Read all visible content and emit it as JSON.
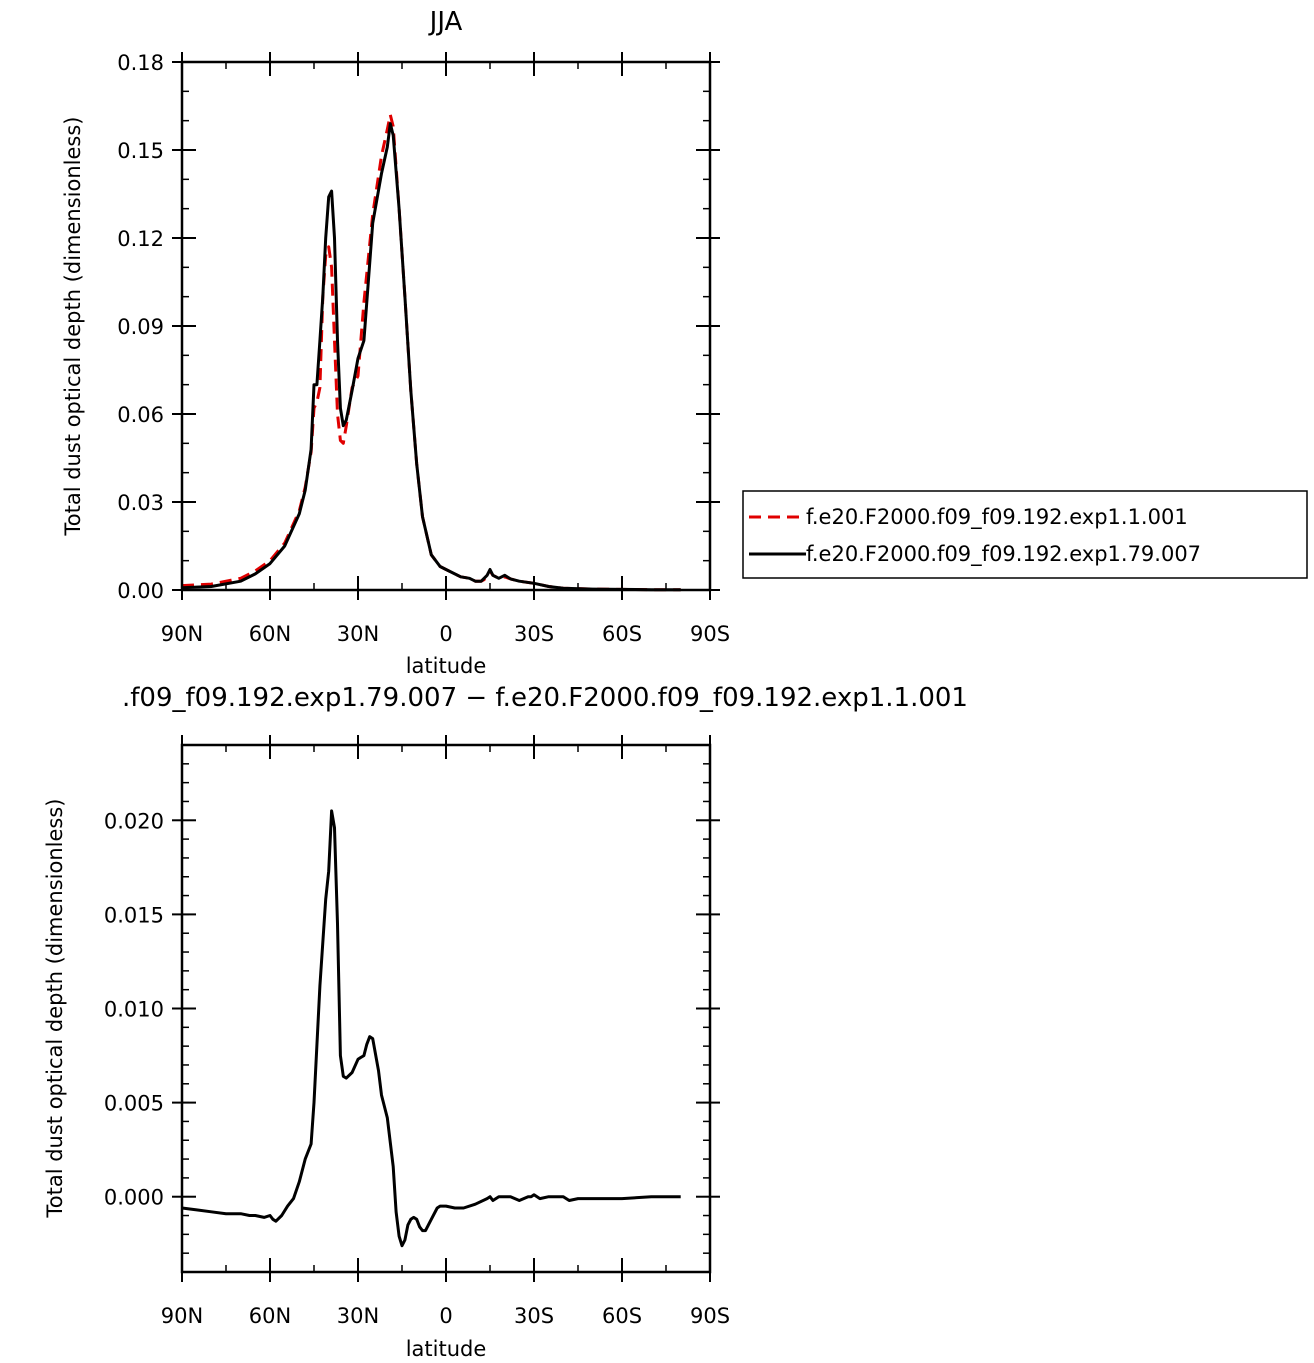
{
  "chart_data": [
    {
      "type": "line",
      "title": "JJA",
      "xlabel": "latitude",
      "ylabel": "Total dust optical depth (dimensionless)",
      "xlim": [
        90,
        -90
      ],
      "ylim": [
        0,
        0.18
      ],
      "x_ticks": [
        90,
        60,
        30,
        0,
        -30,
        -60,
        -90
      ],
      "x_tick_labels": [
        "90N",
        "60N",
        "30N",
        "0",
        "30S",
        "60S",
        "90S"
      ],
      "y_ticks": [
        0,
        0.03,
        0.06,
        0.09,
        0.12,
        0.15,
        0.18
      ],
      "y_tick_labels": [
        "0.00",
        "0.03",
        "0.06",
        "0.09",
        "0.12",
        "0.15",
        "0.18"
      ],
      "legend": "right",
      "series": [
        {
          "name": "f.e20.F2000.f09_f09.192.exp1.1.001",
          "color": "#e00000",
          "dash": "dashed",
          "x": [
            90,
            80,
            70,
            65,
            60,
            55,
            50,
            48,
            46,
            45,
            44,
            43,
            42,
            41,
            40,
            39,
            38,
            37,
            36,
            35,
            34,
            32,
            30,
            28,
            25,
            22,
            20,
            19,
            18,
            16,
            14,
            12,
            10,
            8,
            5,
            2,
            0,
            -3,
            -5,
            -8,
            -10,
            -12,
            -13,
            -14,
            -15,
            -16,
            -18,
            -20,
            -22,
            -25,
            -30,
            -35,
            -40,
            -50,
            -60,
            -70,
            -80
          ],
          "values": [
            0.0015,
            0.002,
            0.004,
            0.0065,
            0.01,
            0.016,
            0.027,
            0.035,
            0.047,
            0.062,
            0.064,
            0.069,
            0.1,
            0.114,
            0.117,
            0.11,
            0.085,
            0.06,
            0.051,
            0.05,
            0.056,
            0.069,
            0.073,
            0.098,
            0.128,
            0.148,
            0.157,
            0.162,
            0.158,
            0.13,
            0.1,
            0.068,
            0.043,
            0.025,
            0.012,
            0.008,
            0.007,
            0.0055,
            0.0045,
            0.004,
            0.003,
            0.003,
            0.0035,
            0.005,
            0.0065,
            0.005,
            0.004,
            0.0045,
            0.0038,
            0.003,
            0.0023,
            0.0012,
            0.0006,
            0.0003,
            0.0002,
            0.0001,
            0.0001
          ]
        },
        {
          "name": "f.e20.F2000.f09_f09.192.exp1.79.007",
          "color": "#000000",
          "dash": "solid",
          "x": [
            90,
            80,
            70,
            65,
            60,
            55,
            50,
            48,
            46,
            45,
            44,
            43,
            42,
            41,
            40,
            39,
            38,
            37,
            36,
            35,
            34,
            32,
            30,
            28,
            25,
            22,
            20,
            19,
            18,
            16,
            14,
            12,
            10,
            8,
            5,
            2,
            0,
            -3,
            -5,
            -8,
            -10,
            -12,
            -13,
            -14,
            -15,
            -16,
            -18,
            -20,
            -22,
            -25,
            -30,
            -35,
            -40,
            -50,
            -60,
            -70,
            -80
          ],
          "values": [
            0.0008,
            0.0012,
            0.003,
            0.0055,
            0.009,
            0.015,
            0.026,
            0.034,
            0.048,
            0.07,
            0.07,
            0.085,
            0.1,
            0.12,
            0.134,
            0.136,
            0.12,
            0.085,
            0.062,
            0.056,
            0.058,
            0.068,
            0.079,
            0.085,
            0.125,
            0.142,
            0.151,
            0.159,
            0.155,
            0.13,
            0.1,
            0.068,
            0.043,
            0.025,
            0.012,
            0.008,
            0.007,
            0.0055,
            0.0045,
            0.004,
            0.003,
            0.003,
            0.004,
            0.005,
            0.007,
            0.005,
            0.004,
            0.005,
            0.0038,
            0.003,
            0.0023,
            0.0012,
            0.0006,
            0.0003,
            0.0002,
            0.0001,
            0.0001
          ]
        }
      ]
    },
    {
      "type": "line",
      "title": ".f09_f09.192.exp1.79.007 − f.e20.F2000.f09_f09.192.exp1.1.001",
      "xlabel": "latitude",
      "ylabel": "Total dust optical depth (dimensionless)",
      "xlim": [
        90,
        -90
      ],
      "ylim": [
        -0.004,
        0.024
      ],
      "x_ticks": [
        90,
        60,
        30,
        0,
        -30,
        -60,
        -90
      ],
      "x_tick_labels": [
        "90N",
        "60N",
        "30N",
        "0",
        "30S",
        "60S",
        "90S"
      ],
      "y_ticks": [
        0,
        0.005,
        0.01,
        0.015,
        0.02
      ],
      "y_tick_labels": [
        "0.000",
        "0.005",
        "0.010",
        "0.015",
        "0.020"
      ],
      "series": [
        {
          "color": "#000000",
          "dash": "solid",
          "x": [
            90,
            85,
            80,
            75,
            70,
            67,
            65,
            62,
            60,
            59,
            58,
            56,
            54,
            52,
            50,
            48,
            46,
            45,
            43,
            41,
            40,
            39,
            38,
            37,
            36,
            35,
            34,
            32,
            30,
            29,
            28,
            27,
            26,
            25,
            23,
            22,
            20,
            18,
            17,
            16,
            15,
            14,
            13,
            12,
            11,
            10,
            9,
            8,
            7,
            5,
            3,
            2,
            0,
            -3,
            -6,
            -10,
            -14,
            -15,
            -16,
            -18,
            -20,
            -22,
            -25,
            -28,
            -29,
            -30,
            -32,
            -35,
            -38,
            -40,
            -42,
            -45,
            -50,
            -60,
            -70,
            -80
          ],
          "values": [
            -0.0006,
            -0.0007,
            -0.0008,
            -0.0009,
            -0.0009,
            -0.001,
            -0.001,
            -0.0011,
            -0.001,
            -0.0012,
            -0.0013,
            -0.001,
            -0.0005,
            -0.0001,
            0.0008,
            0.002,
            0.0028,
            0.005,
            0.0112,
            0.0158,
            0.0173,
            0.0205,
            0.0196,
            0.0145,
            0.0075,
            0.0064,
            0.0063,
            0.0066,
            0.0073,
            0.0074,
            0.0075,
            0.0081,
            0.0085,
            0.0084,
            0.0067,
            0.0054,
            0.0042,
            0.0016,
            -0.0008,
            -0.0021,
            -0.0026,
            -0.0023,
            -0.0015,
            -0.0012,
            -0.0011,
            -0.0012,
            -0.0016,
            -0.0018,
            -0.0018,
            -0.0012,
            -0.0006,
            -0.0005,
            -0.0005,
            -0.0006,
            -0.0006,
            -0.0004,
            -0.0001,
            0.0,
            -0.0002,
            0.0,
            0.0,
            0.0,
            -0.0002,
            0.0,
            0.0,
            0.0001,
            -0.0001,
            0.0,
            0.0,
            0.0,
            -0.0002,
            -0.0001,
            -0.0001,
            -0.0001,
            0.0,
            0.0
          ]
        }
      ]
    }
  ]
}
